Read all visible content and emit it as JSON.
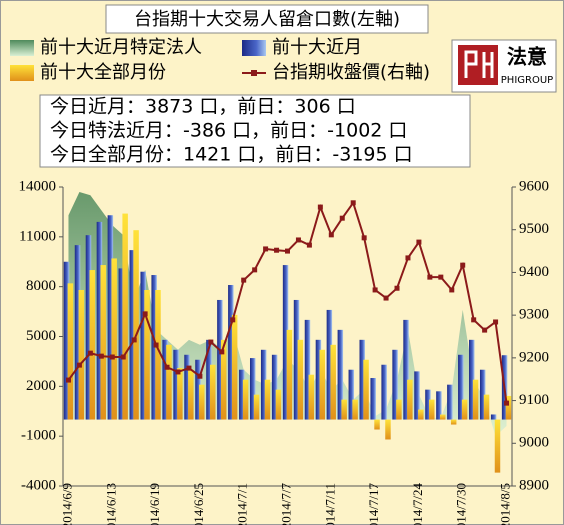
{
  "chart_data": {
    "type": "combo",
    "title": "台指期十大交易人留倉口數(左軸)",
    "info_lines": [
      "今日近月：3873 口，前日：306 口",
      "今日特法近月：-386 口，前日：-1002 口",
      "今日全部月份：1421 口，前日：-3195 口"
    ],
    "logo": {
      "name": "法意",
      "brand": "PHIGROUP"
    },
    "categories": [
      "2014/6/9",
      null,
      null,
      null,
      "2014/6/13",
      null,
      null,
      null,
      "2014/6/19",
      null,
      null,
      null,
      "2014/6/25",
      null,
      null,
      null,
      "2014/7/1",
      null,
      null,
      null,
      "2014/7/7",
      null,
      null,
      null,
      "2014/7/11",
      null,
      null,
      null,
      "2014/7/17",
      null,
      null,
      null,
      "2014/7/24",
      null,
      null,
      null,
      "2014/7/30",
      null,
      null,
      null,
      "2014/8/5"
    ],
    "ylim": [
      -4000,
      14000
    ],
    "yticks": [
      -4000,
      -1000,
      2000,
      5000,
      8000,
      11000,
      14000
    ],
    "y2lim": [
      8900,
      9600
    ],
    "y2ticks": [
      8900,
      9000,
      9100,
      9200,
      9300,
      9400,
      9500,
      9600
    ],
    "grid": false,
    "series": [
      {
        "name": "前十大近月特定法人",
        "type": "area",
        "color": "#5e9a6a",
        "values": [
          12300,
          13700,
          13500,
          12600,
          11700,
          11100,
          7200,
          9000,
          5400,
          4800,
          4200,
          4800,
          4500,
          4800,
          4200,
          5400,
          3000,
          2400,
          2100,
          2400,
          3600,
          3000,
          1800,
          3000,
          1800,
          2400,
          1200,
          1800,
          200,
          600,
          2400,
          5400,
          1500,
          100,
          100,
          1800,
          6600,
          2400,
          1200,
          -1002,
          -386
        ]
      },
      {
        "name": "前十大近月",
        "type": "bar",
        "color": "#2f3f9e",
        "values": [
          9500,
          10500,
          11100,
          11900,
          12300,
          9100,
          10200,
          8900,
          8700,
          4800,
          4200,
          3900,
          3600,
          4800,
          7200,
          8100,
          3000,
          3700,
          4200,
          3900,
          9300,
          7200,
          6000,
          4800,
          6600,
          5400,
          3000,
          4800,
          2500,
          3300,
          4200,
          6000,
          2900,
          1800,
          1700,
          2100,
          3900,
          4800,
          3000,
          306,
          3873
        ]
      },
      {
        "name": "前十大全部月份",
        "type": "bar",
        "color": "#f0b020",
        "values": [
          8200,
          7800,
          9000,
          9300,
          9700,
          12400,
          11400,
          7800,
          7800,
          4500,
          3100,
          3000,
          2100,
          3300,
          4800,
          6300,
          2400,
          1500,
          2400,
          1800,
          5400,
          4800,
          2700,
          4200,
          4500,
          1200,
          1200,
          3600,
          -600,
          -1200,
          1200,
          2400,
          600,
          1200,
          300,
          -300,
          1200,
          2400,
          1500,
          -3195,
          1421
        ]
      },
      {
        "name": "台指期收盤價(右軸)",
        "type": "line",
        "axis": "y2",
        "color": "#8b1a1a",
        "values": [
          9148,
          9183,
          9211,
          9204,
          9202,
          9202,
          9242,
          9303,
          9230,
          9178,
          9167,
          9176,
          9157,
          9237,
          9214,
          9289,
          9382,
          9406,
          9455,
          9452,
          9450,
          9476,
          9464,
          9553,
          9488,
          9527,
          9563,
          9481,
          9359,
          9340,
          9363,
          9434,
          9471,
          9389,
          9389,
          9359,
          9417,
          9289,
          9265,
          9284,
          9094
        ]
      }
    ]
  }
}
